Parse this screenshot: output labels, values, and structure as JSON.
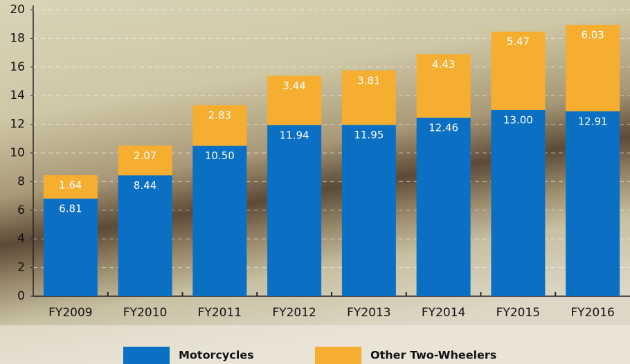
{
  "chart_data": {
    "type": "stacked-bar",
    "categories": [
      "FY2009",
      "FY2010",
      "FY2011",
      "FY2012",
      "FY2013",
      "FY2014",
      "FY2015",
      "FY2016"
    ],
    "series": [
      {
        "name": "Motorcycles",
        "color": "#0b6fc3",
        "values": [
          6.81,
          8.44,
          10.5,
          11.94,
          11.95,
          12.46,
          13,
          12.91
        ],
        "value_labels": [
          "6.81",
          "8.44",
          "10.50",
          "11.94",
          "11.95",
          "12.46",
          "13.00",
          "12.91"
        ]
      },
      {
        "name": "Other Two-Wheelers",
        "color": "#f5ae30",
        "values": [
          1.64,
          2.07,
          2.83,
          3.44,
          3.81,
          4.43,
          5.47,
          6.03
        ]
      }
    ],
    "ylim": [
      0,
      20
    ],
    "yticks": [
      0,
      2,
      4,
      6,
      8,
      10,
      12,
      14,
      16,
      18,
      20
    ],
    "grid": true
  }
}
